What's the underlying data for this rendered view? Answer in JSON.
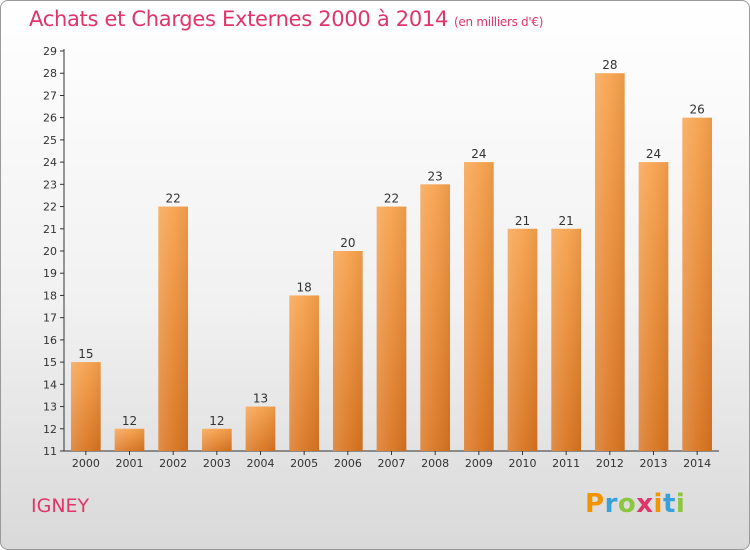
{
  "chart_data": {
    "type": "bar",
    "title": "Achats et Charges Externes 2000 à 2014",
    "unit": "(en milliers d'€)",
    "xlabel": "",
    "ylabel": "",
    "categories": [
      "2000",
      "2001",
      "2002",
      "2003",
      "2004",
      "2005",
      "2006",
      "2007",
      "2008",
      "2009",
      "2010",
      "2011",
      "2012",
      "2013",
      "2014"
    ],
    "values": [
      15,
      12,
      22,
      12,
      13,
      18,
      20,
      22,
      23,
      24,
      21,
      21,
      28,
      24,
      26
    ],
    "ylim": [
      11,
      29
    ],
    "yticks": [
      11,
      12,
      13,
      14,
      15,
      16,
      17,
      18,
      19,
      20,
      21,
      22,
      23,
      24,
      25,
      26,
      27,
      28,
      29
    ],
    "grid": false,
    "bar_color_top": "#f7a24d",
    "bar_color_bottom": "#d97420",
    "legend": "none"
  },
  "commune": "IGNEY",
  "logo": {
    "letters": [
      "P",
      "r",
      "o",
      "x",
      "i",
      "t",
      "i"
    ],
    "colors": [
      "#f29400",
      "#3aa0d9",
      "#8cc63f",
      "#e0356a",
      "#f29400",
      "#3aa0d9",
      "#8cc63f"
    ]
  },
  "colors": {
    "title": "#e0356a",
    "axis": "#333333"
  }
}
